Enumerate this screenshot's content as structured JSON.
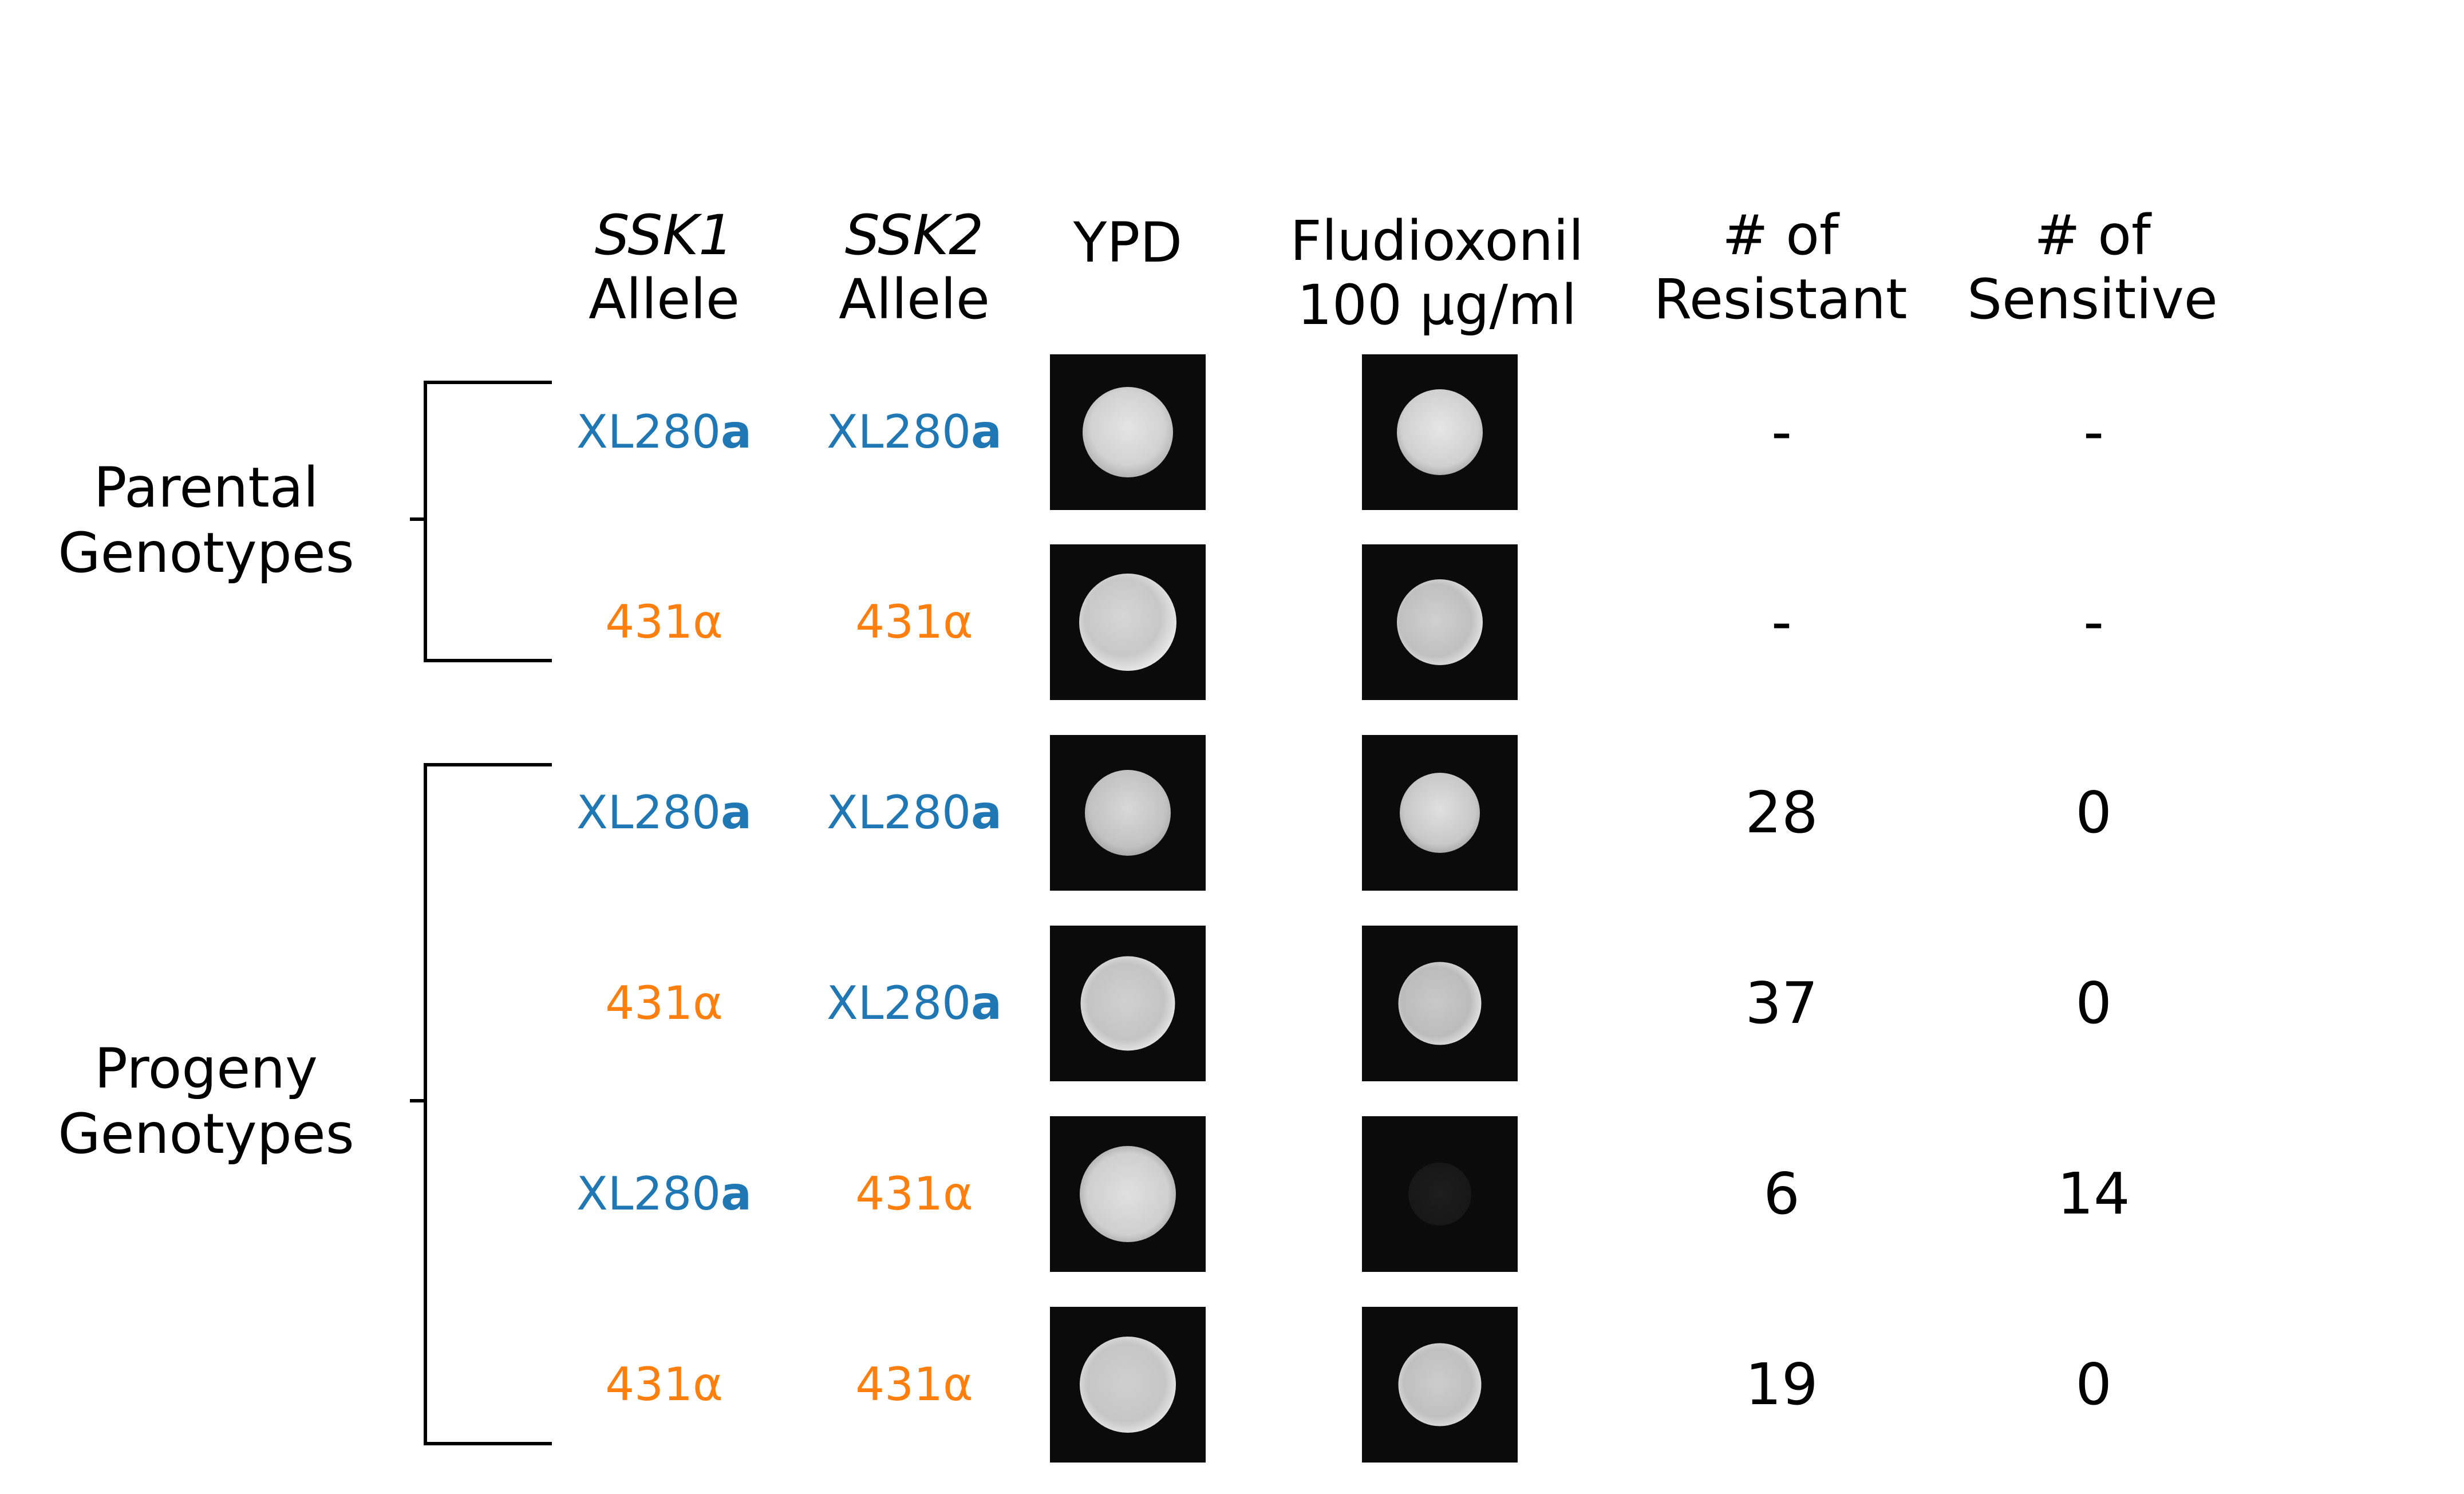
{
  "headers": {
    "ssk1_gene": "SSK1",
    "ssk1_sub": "Allele",
    "ssk2_gene": "SSK2",
    "ssk2_sub": "Allele",
    "ypd": "YPD",
    "flu_line1": "Fludioxonil",
    "flu_line2": "100 μg/ml",
    "res_line1": "# of",
    "res_line2": "Resistant",
    "sen_line1": "# of",
    "sen_line2": "Sensitive"
  },
  "groups": {
    "parental_line1": "Parental",
    "parental_line2": "Genotypes",
    "progeny_line1": "Progeny",
    "progeny_line2": "Genotypes"
  },
  "allele_labels": {
    "xl280_prefix": "XL280",
    "xl280_suffix": "a",
    "a431": "431α"
  },
  "colors": {
    "xl280": "#1f77b4",
    "a431": "#ff7f0e"
  },
  "rows": [
    {
      "ssk1": "XL280a",
      "ssk2": "XL280a",
      "resistant": "-",
      "sensitive": "-",
      "fludioxonil_growth": "normal"
    },
    {
      "ssk1": "431α",
      "ssk2": "431α",
      "resistant": "-",
      "sensitive": "-",
      "fludioxonil_growth": "normal"
    },
    {
      "ssk1": "XL280a",
      "ssk2": "XL280a",
      "resistant": "28",
      "sensitive": "0",
      "fludioxonil_growth": "normal"
    },
    {
      "ssk1": "431α",
      "ssk2": "XL280a",
      "resistant": "37",
      "sensitive": "0",
      "fludioxonil_growth": "normal"
    },
    {
      "ssk1": "XL280a",
      "ssk2": "431α",
      "resistant": "6",
      "sensitive": "14",
      "fludioxonil_growth": "none"
    },
    {
      "ssk1": "431α",
      "ssk2": "431α",
      "resistant": "19",
      "sensitive": "0",
      "fludioxonil_growth": "normal"
    }
  ]
}
